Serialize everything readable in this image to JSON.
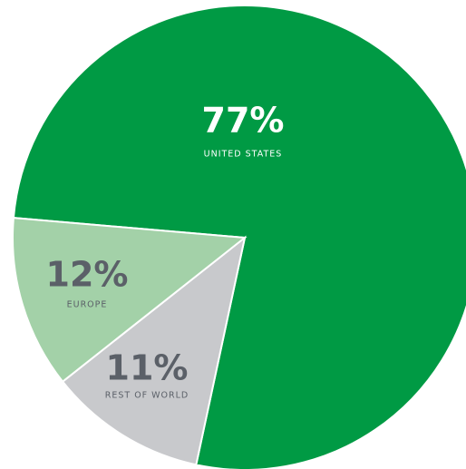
{
  "chart_data": {
    "type": "pie",
    "categories": [
      "UNITED STATES",
      "REST OF WORLD",
      "EUROPE"
    ],
    "values": [
      77,
      11,
      12
    ],
    "value_labels": [
      "77%",
      "11%",
      "12%"
    ],
    "colors": [
      "#009a44",
      "#c8c9cc",
      "#a3d1a8"
    ]
  }
}
